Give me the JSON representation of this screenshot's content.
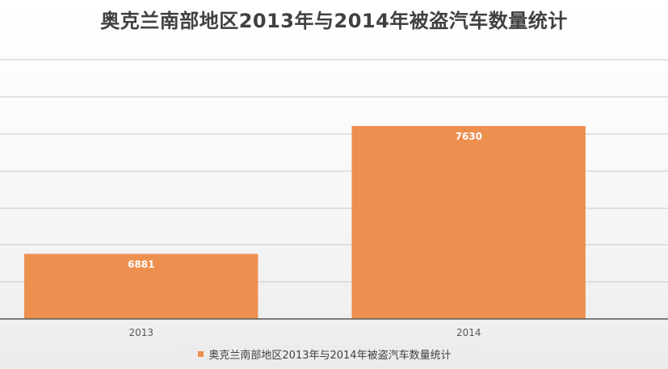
{
  "chart_data": {
    "type": "bar",
    "title": "奥克兰南部地区2013年与2014年被盗汽车数量统计",
    "categories": [
      "2013",
      "2014"
    ],
    "series": [
      {
        "name": "奥克兰南部地区2013年与2014年被盗汽车数量统计",
        "values": [
          6881,
          7630
        ]
      }
    ],
    "data_labels": [
      "6881",
      "7630"
    ],
    "ylim": [
      6500,
      7800
    ],
    "grid": true,
    "legend": "bottom",
    "colors": {
      "bar": "#ED8F4F",
      "grid": "#c9c9c9",
      "axis": "#595959",
      "legend_bg": "#ececec"
    }
  }
}
